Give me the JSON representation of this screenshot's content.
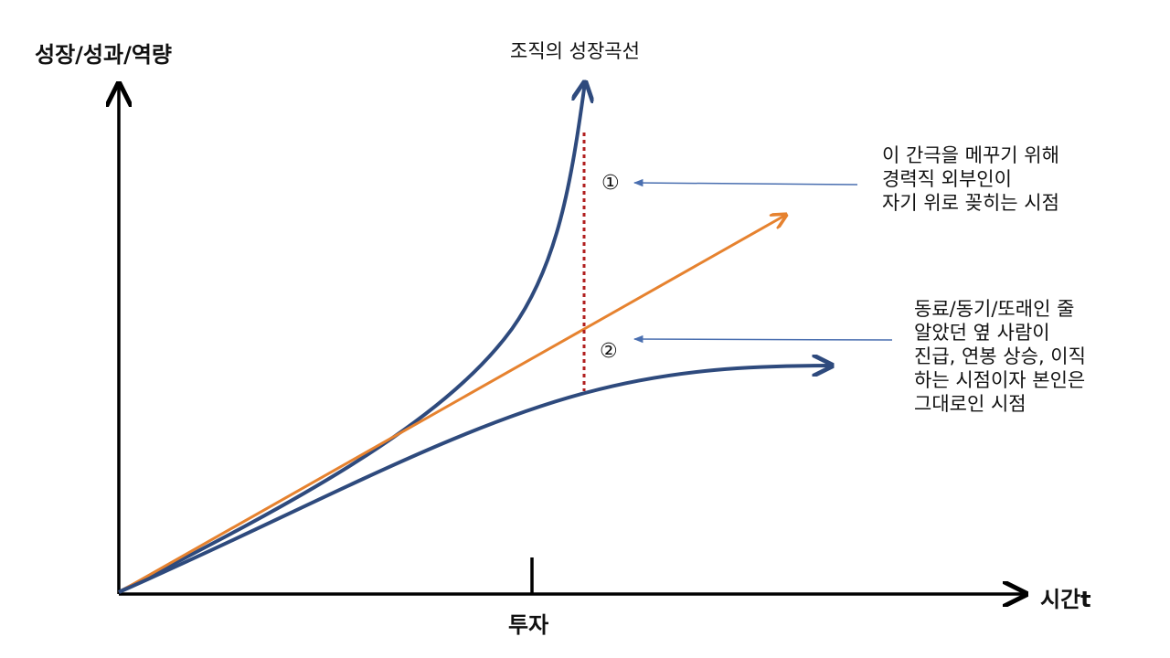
{
  "axes": {
    "y_label": "성장/성과/역량",
    "x_label": "시간t",
    "x_tick_label": "투자"
  },
  "curve_labels": {
    "organization": "조직의 성장곡선"
  },
  "markers": {
    "first": "①",
    "second": "②"
  },
  "annotations": {
    "first": {
      "lines": [
        "이 간극을 메꾸기 위해",
        "경력직 외부인이",
        "자기 위로 꽂히는 시점"
      ]
    },
    "second": {
      "lines": [
        "동료/동기/또래인 줄",
        "알았던 옆 사람이",
        "진급, 연봉 상승, 이직",
        "하는 시점이자 본인은",
        "그대로인 시점"
      ]
    }
  },
  "colors": {
    "axis": "#000000",
    "curve_blue": "#2e4a7d",
    "line_orange": "#e6822f",
    "gap_red": "#b01e1e",
    "pointer_blue": "#4a6fb0"
  }
}
